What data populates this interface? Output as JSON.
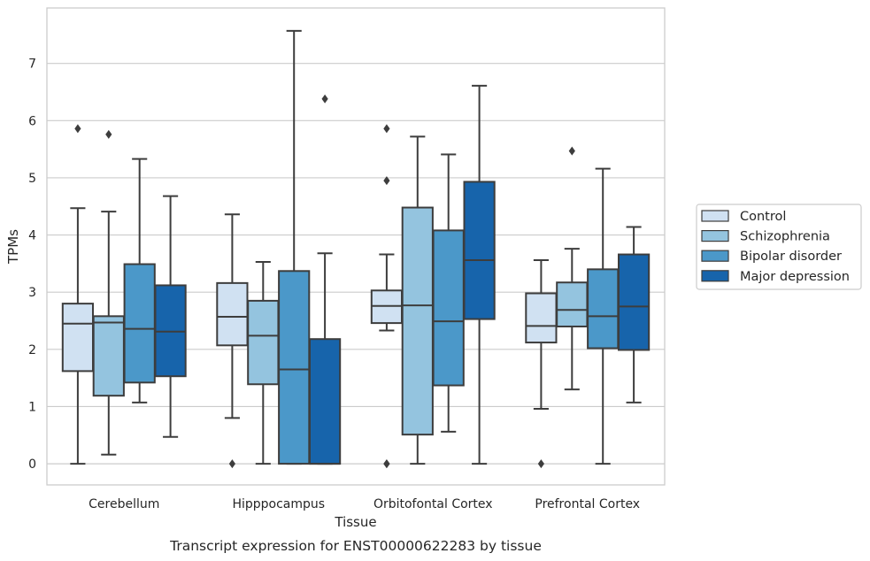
{
  "chart_data": {
    "type": "box",
    "xlabel": "Tissue",
    "ylabel": "TPMs",
    "caption": "Transcript expression for ENST00000622283 by tissue",
    "ylim": [
      -0.37,
      7.97
    ],
    "yticks": [
      0,
      1,
      2,
      3,
      4,
      5,
      6,
      7
    ],
    "grid": true,
    "legend_position": "right",
    "categories": [
      "Cerebellum",
      "Hipppocampus",
      "Orbitofontal Cortex",
      "Prefrontal Cortex"
    ],
    "series": [
      {
        "name": "Control",
        "color": "#d0e1f2",
        "boxes": [
          {
            "whislo": 0.0,
            "q1": 1.62,
            "med": 2.45,
            "q3": 2.8,
            "whishi": 4.47,
            "fliers": [
              5.86
            ]
          },
          {
            "whislo": 0.8,
            "q1": 2.07,
            "med": 2.57,
            "q3": 3.16,
            "whishi": 4.36,
            "fliers": [
              0.0
            ]
          },
          {
            "whislo": 2.33,
            "q1": 2.46,
            "med": 2.76,
            "q3": 3.03,
            "whishi": 3.66,
            "fliers": [
              5.86,
              4.95,
              0.0,
              0.0
            ]
          },
          {
            "whislo": 0.96,
            "q1": 2.12,
            "med": 2.41,
            "q3": 2.98,
            "whishi": 3.56,
            "fliers": [
              0.0
            ]
          }
        ]
      },
      {
        "name": "Schizophrenia",
        "color": "#94c4df",
        "boxes": [
          {
            "whislo": 0.16,
            "q1": 1.19,
            "med": 2.47,
            "q3": 2.58,
            "whishi": 4.41,
            "fliers": [
              5.76
            ]
          },
          {
            "whislo": 0.0,
            "q1": 1.39,
            "med": 2.24,
            "q3": 2.85,
            "whishi": 3.53,
            "fliers": []
          },
          {
            "whislo": 0.0,
            "q1": 0.51,
            "med": 2.77,
            "q3": 4.48,
            "whishi": 5.72,
            "fliers": []
          },
          {
            "whislo": 1.3,
            "q1": 2.4,
            "med": 2.69,
            "q3": 3.17,
            "whishi": 3.76,
            "fliers": [
              5.47
            ]
          }
        ]
      },
      {
        "name": "Bipolar disorder",
        "color": "#4b98c9",
        "boxes": [
          {
            "whislo": 1.07,
            "q1": 1.42,
            "med": 2.36,
            "q3": 3.49,
            "whishi": 5.33,
            "fliers": []
          },
          {
            "whislo": 0.0,
            "q1": 0.0,
            "med": 1.65,
            "q3": 3.37,
            "whishi": 7.57,
            "fliers": []
          },
          {
            "whislo": 0.56,
            "q1": 1.37,
            "med": 2.49,
            "q3": 4.08,
            "whishi": 5.41,
            "fliers": []
          },
          {
            "whislo": 0.0,
            "q1": 2.02,
            "med": 2.58,
            "q3": 3.4,
            "whishi": 5.16,
            "fliers": []
          }
        ]
      },
      {
        "name": "Major depression",
        "color": "#1764ab",
        "boxes": [
          {
            "whislo": 0.47,
            "q1": 1.53,
            "med": 2.31,
            "q3": 3.12,
            "whishi": 4.68,
            "fliers": []
          },
          {
            "whislo": 0.0,
            "q1": 0.0,
            "med": 0.0,
            "q3": 2.18,
            "whishi": 3.68,
            "fliers": [
              6.38
            ]
          },
          {
            "whislo": 0.0,
            "q1": 2.53,
            "med": 3.56,
            "q3": 4.93,
            "whishi": 6.61,
            "fliers": []
          },
          {
            "whislo": 1.07,
            "q1": 1.99,
            "med": 2.75,
            "q3": 3.66,
            "whishi": 4.14,
            "fliers": []
          }
        ]
      }
    ]
  }
}
